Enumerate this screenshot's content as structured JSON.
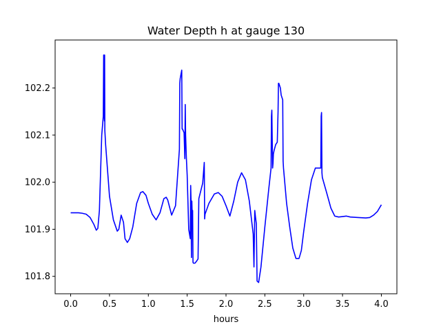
{
  "chart_data": {
    "type": "line",
    "title": "Water Depth h at gauge 130",
    "xlabel": "hours",
    "ylabel": "",
    "xlim": [
      -0.2,
      4.2
    ],
    "ylim": [
      101.763,
      102.302
    ],
    "xticks": [
      0.0,
      0.5,
      1.0,
      1.5,
      2.0,
      2.5,
      3.0,
      3.5,
      4.0
    ],
    "xtick_labels": [
      "0.0",
      "0.5",
      "1.0",
      "1.5",
      "2.0",
      "2.5",
      "3.0",
      "3.5",
      "4.0"
    ],
    "yticks": [
      101.8,
      101.9,
      102.0,
      102.1,
      102.2
    ],
    "ytick_labels": [
      "101.8",
      "101.9",
      "102.0",
      "102.1",
      "102.2"
    ],
    "grid": false,
    "series": [
      {
        "color": "#0000ff",
        "x": [
          0.0,
          0.1,
          0.15,
          0.2,
          0.25,
          0.3,
          0.33,
          0.35,
          0.37,
          0.4,
          0.42,
          0.425,
          0.43,
          0.432,
          0.435,
          0.437,
          0.44,
          0.45,
          0.5,
          0.55,
          0.6,
          0.62,
          0.65,
          0.68,
          0.7,
          0.73,
          0.76,
          0.8,
          0.85,
          0.9,
          0.93,
          0.97,
          1.0,
          1.05,
          1.1,
          1.15,
          1.2,
          1.23,
          1.25,
          1.3,
          1.35,
          1.4,
          1.405,
          1.41,
          1.43,
          1.435,
          1.44,
          1.46,
          1.47,
          1.475,
          1.48,
          1.49,
          1.5,
          1.52,
          1.54,
          1.545,
          1.55,
          1.555,
          1.56,
          1.565,
          1.57,
          1.575,
          1.58,
          1.6,
          1.62,
          1.64,
          1.65,
          1.7,
          1.72,
          1.725,
          1.73,
          1.78,
          1.85,
          1.9,
          1.95,
          2.0,
          2.05,
          2.1,
          2.15,
          2.2,
          2.25,
          2.3,
          2.35,
          2.36,
          2.37,
          2.38,
          2.39,
          2.4,
          2.42,
          2.45,
          2.5,
          2.55,
          2.58,
          2.585,
          2.59,
          2.6,
          2.605,
          2.61,
          2.62,
          2.64,
          2.66,
          2.67,
          2.675,
          2.68,
          2.7,
          2.71,
          2.73,
          2.735,
          2.74,
          2.78,
          2.82,
          2.86,
          2.9,
          2.94,
          2.97,
          3.0,
          3.05,
          3.1,
          3.15,
          3.2,
          3.22,
          3.225,
          3.23,
          3.235,
          3.24,
          3.3,
          3.35,
          3.4,
          3.45,
          3.5,
          3.55,
          3.6,
          3.7,
          3.8,
          3.85,
          3.9,
          3.95,
          4.0
        ],
        "y": [
          101.935,
          101.935,
          101.934,
          101.932,
          101.925,
          101.91,
          101.898,
          101.902,
          101.94,
          102.1,
          102.14,
          102.27,
          102.27,
          102.14,
          102.13,
          102.27,
          102.11,
          102.08,
          101.97,
          101.92,
          101.896,
          101.9,
          101.93,
          101.915,
          101.88,
          101.872,
          101.88,
          101.905,
          101.955,
          101.978,
          101.98,
          101.972,
          101.955,
          101.932,
          101.92,
          101.935,
          101.965,
          101.968,
          101.962,
          101.93,
          101.95,
          102.07,
          102.21,
          102.22,
          102.238,
          102.113,
          102.113,
          102.105,
          102.05,
          102.165,
          102.1,
          102.05,
          102.015,
          101.9,
          101.88,
          101.993,
          101.96,
          101.84,
          101.96,
          101.93,
          101.94,
          101.83,
          101.828,
          101.828,
          101.832,
          101.837,
          101.965,
          101.998,
          102.042,
          101.922,
          101.932,
          101.955,
          101.975,
          101.978,
          101.97,
          101.95,
          101.928,
          101.96,
          102.0,
          102.02,
          102.005,
          101.96,
          101.89,
          101.82,
          101.94,
          101.925,
          101.912,
          101.79,
          101.787,
          101.82,
          101.905,
          101.985,
          102.03,
          102.14,
          102.153,
          102.03,
          102.04,
          102.06,
          102.068,
          102.08,
          102.085,
          102.15,
          102.21,
          102.21,
          102.2,
          102.185,
          102.175,
          102.045,
          102.03,
          101.955,
          101.905,
          101.86,
          101.838,
          101.838,
          101.855,
          101.895,
          101.955,
          102.005,
          102.03,
          102.03,
          102.03,
          102.14,
          102.148,
          102.02,
          102.01,
          101.975,
          101.945,
          101.928,
          101.926,
          101.927,
          101.928,
          101.926,
          101.925,
          101.924,
          101.925,
          101.93,
          101.938,
          101.952
        ]
      }
    ]
  }
}
